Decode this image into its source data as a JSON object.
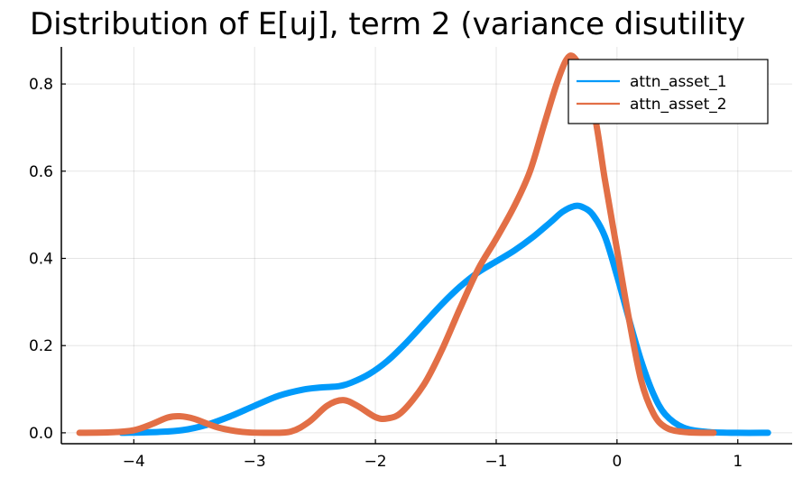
{
  "chart_data": {
    "type": "line",
    "title": "Distribution of E[uj], term 2 (variance disutility",
    "xlabel": "",
    "ylabel": "",
    "xlim": [
      -4.6,
      1.45
    ],
    "ylim": [
      -0.025,
      0.885
    ],
    "xticks": [
      -4,
      -3,
      -2,
      -1,
      0,
      1
    ],
    "xtick_labels": [
      "−4",
      "−3",
      "−2",
      "−1",
      "0",
      "1"
    ],
    "yticks": [
      0.0,
      0.2,
      0.4,
      0.6,
      0.8
    ],
    "ytick_labels": [
      "0.0",
      "0.2",
      "0.4",
      "0.6",
      "0.8"
    ],
    "grid": true,
    "legend_position": "top-right",
    "series": [
      {
        "name": "attn_asset_1",
        "color": "#009AFA",
        "points": [
          [
            -4.1,
            0.0
          ],
          [
            -3.8,
            0.002
          ],
          [
            -3.6,
            0.006
          ],
          [
            -3.4,
            0.018
          ],
          [
            -3.2,
            0.038
          ],
          [
            -3.0,
            0.062
          ],
          [
            -2.8,
            0.085
          ],
          [
            -2.6,
            0.099
          ],
          [
            -2.45,
            0.104
          ],
          [
            -2.3,
            0.107
          ],
          [
            -2.2,
            0.115
          ],
          [
            -2.05,
            0.135
          ],
          [
            -1.9,
            0.165
          ],
          [
            -1.75,
            0.205
          ],
          [
            -1.6,
            0.25
          ],
          [
            -1.45,
            0.295
          ],
          [
            -1.3,
            0.335
          ],
          [
            -1.15,
            0.368
          ],
          [
            -1.0,
            0.393
          ],
          [
            -0.85,
            0.418
          ],
          [
            -0.7,
            0.448
          ],
          [
            -0.55,
            0.483
          ],
          [
            -0.45,
            0.507
          ],
          [
            -0.35,
            0.52
          ],
          [
            -0.28,
            0.517
          ],
          [
            -0.2,
            0.5
          ],
          [
            -0.1,
            0.45
          ],
          [
            0.0,
            0.36
          ],
          [
            0.1,
            0.26
          ],
          [
            0.2,
            0.165
          ],
          [
            0.3,
            0.09
          ],
          [
            0.4,
            0.042
          ],
          [
            0.55,
            0.012
          ],
          [
            0.75,
            0.002
          ],
          [
            1.0,
            0.0
          ],
          [
            1.25,
            0.0
          ]
        ]
      },
      {
        "name": "attn_asset_2",
        "color": "#E26F46",
        "points": [
          [
            -4.45,
            0.0
          ],
          [
            -4.2,
            0.001
          ],
          [
            -4.0,
            0.006
          ],
          [
            -3.85,
            0.02
          ],
          [
            -3.72,
            0.035
          ],
          [
            -3.62,
            0.038
          ],
          [
            -3.5,
            0.032
          ],
          [
            -3.3,
            0.012
          ],
          [
            -3.1,
            0.002
          ],
          [
            -2.9,
            0.0
          ],
          [
            -2.7,
            0.003
          ],
          [
            -2.55,
            0.025
          ],
          [
            -2.4,
            0.062
          ],
          [
            -2.27,
            0.075
          ],
          [
            -2.15,
            0.062
          ],
          [
            -2.0,
            0.036
          ],
          [
            -1.9,
            0.033
          ],
          [
            -1.78,
            0.048
          ],
          [
            -1.6,
            0.11
          ],
          [
            -1.45,
            0.19
          ],
          [
            -1.3,
            0.285
          ],
          [
            -1.15,
            0.375
          ],
          [
            -1.0,
            0.445
          ],
          [
            -0.85,
            0.52
          ],
          [
            -0.72,
            0.6
          ],
          [
            -0.6,
            0.71
          ],
          [
            -0.5,
            0.8
          ],
          [
            -0.42,
            0.855
          ],
          [
            -0.36,
            0.862
          ],
          [
            -0.28,
            0.82
          ],
          [
            -0.18,
            0.72
          ],
          [
            -0.1,
            0.58
          ],
          [
            0.0,
            0.42
          ],
          [
            0.1,
            0.26
          ],
          [
            0.2,
            0.12
          ],
          [
            0.3,
            0.045
          ],
          [
            0.4,
            0.013
          ],
          [
            0.55,
            0.002
          ],
          [
            0.8,
            0.0
          ]
        ]
      }
    ]
  }
}
